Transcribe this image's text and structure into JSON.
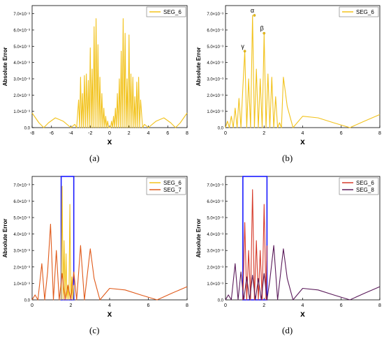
{
  "figure": {
    "panels": [
      {
        "label": "(a)"
      },
      {
        "label": "(b)"
      },
      {
        "label": "(c)"
      },
      {
        "label": "(d)"
      }
    ]
  },
  "chart_data": [
    {
      "type": "line",
      "xlabel": "x",
      "ylabel": "Absolute Error",
      "xlim": [
        -8,
        8
      ],
      "ylim": [
        0,
        0.0075
      ],
      "xticks": [
        -8,
        -6,
        -4,
        -2,
        0,
        2,
        4,
        6,
        8
      ],
      "yticks": [
        "0.0",
        "1.0×10⁻³",
        "2.0×10⁻³",
        "3.0×10⁻³",
        "4.0×10⁻³",
        "5.0×10⁻³",
        "6.0×10⁻³",
        "7.0×10⁻³"
      ],
      "legend": {
        "position": "top-right"
      },
      "grid": false,
      "series": [
        {
          "name": "SEG_6",
          "color": "#f2c21b",
          "x": [
            -8,
            -7.3,
            -6.8,
            -6.3,
            -5.6,
            -4.8,
            -4.0,
            -3.6,
            -3.4,
            -3.2,
            -3.1,
            -3.0,
            -2.9,
            -2.8,
            -2.7,
            -2.6,
            -2.5,
            -2.4,
            -2.3,
            -2.2,
            -2.1,
            -2.0,
            -1.9,
            -1.8,
            -1.7,
            -1.6,
            -1.5,
            -1.4,
            -1.3,
            -1.2,
            -1.1,
            -1.0,
            -0.9,
            -0.8,
            -0.7,
            -0.6,
            -0.5,
            -0.4,
            -0.3,
            -0.2,
            -0.1,
            0,
            0.1,
            0.2,
            0.3,
            0.4,
            0.5,
            0.6,
            0.7,
            0.8,
            0.9,
            1.0,
            1.1,
            1.2,
            1.3,
            1.4,
            1.5,
            1.6,
            1.7,
            1.8,
            1.9,
            2.0,
            2.1,
            2.2,
            2.3,
            2.4,
            2.5,
            2.6,
            2.7,
            2.8,
            2.9,
            3.0,
            3.1,
            3.2,
            3.4,
            3.6,
            4.0,
            4.8,
            5.6,
            6.3,
            6.8,
            7.3,
            8
          ],
          "y": [
            0.0009,
            0.0003,
            0.0,
            0.0003,
            0.0006,
            0.0004,
            0.0,
            0.0002,
            0.0,
            0.0017,
            0.0,
            0.0031,
            0.0,
            0.0021,
            0.0,
            0.0032,
            0.0,
            0.0033,
            0.0,
            0.0029,
            0.0,
            0.0049,
            0.0,
            0.0036,
            0.0,
            0.0062,
            0.0,
            0.0067,
            0.0,
            0.0051,
            0.0,
            0.0031,
            0.0,
            0.0021,
            0.0,
            0.0012,
            0.0,
            0.0007,
            0.0,
            0.0004,
            0.0,
            0.0,
            0.0,
            0.0004,
            0.0,
            0.0007,
            0.0,
            0.0012,
            0.0,
            0.0021,
            0.0,
            0.003,
            0.0,
            0.0047,
            0.0,
            0.0067,
            0.0,
            0.0058,
            0.0,
            0.003,
            0.0,
            0.0057,
            0.0,
            0.0033,
            0.0,
            0.0031,
            0.0,
            0.0019,
            0.0,
            0.0028,
            0.0,
            0.0031,
            0.0,
            0.0017,
            0.0,
            0.0002,
            0.0,
            0.0004,
            0.0006,
            0.0003,
            0.0,
            0.0003,
            0.0009
          ]
        }
      ]
    },
    {
      "type": "line",
      "xlabel": "x",
      "ylabel": "Absolute Error",
      "xlim": [
        0,
        8
      ],
      "ylim": [
        0,
        0.0075
      ],
      "xticks": [
        0,
        2,
        4,
        6,
        8
      ],
      "yticks": [
        "0.0",
        "1.0×10⁻³",
        "2.0×10⁻³",
        "3.0×10⁻³",
        "4.0×10⁻³",
        "5.0×10⁻³",
        "6.0×10⁻³",
        "7.0×10⁻³"
      ],
      "legend": {
        "position": "top-right"
      },
      "grid": false,
      "annotations": [
        {
          "text": "α",
          "x": 1.5,
          "y": 0.0069
        },
        {
          "text": "β",
          "x": 2.0,
          "y": 0.0058
        },
        {
          "text": "γ",
          "x": 1.0,
          "y": 0.0047
        }
      ],
      "series": [
        {
          "name": "SEG_6",
          "color": "#f2c21b",
          "x": [
            0,
            0.1,
            0.2,
            0.3,
            0.4,
            0.5,
            0.6,
            0.7,
            0.8,
            0.9,
            1.0,
            1.1,
            1.2,
            1.3,
            1.4,
            1.5,
            1.6,
            1.7,
            1.8,
            1.9,
            2.0,
            2.1,
            2.2,
            2.3,
            2.4,
            2.5,
            2.6,
            2.7,
            2.8,
            2.9,
            3.0,
            3.2,
            3.5,
            4.0,
            4.8,
            5.6,
            6.45,
            7.2,
            8
          ],
          "y": [
            0.0,
            0.0004,
            0.0,
            0.0007,
            0.0,
            0.0012,
            0.0,
            0.0018,
            0.0,
            0.0025,
            0.0047,
            0.0,
            0.003,
            0.0,
            0.0069,
            0.0,
            0.0036,
            0.0,
            0.003,
            0.0,
            0.0058,
            0.0,
            0.0033,
            0.0,
            0.0031,
            0.0,
            0.0019,
            0.0,
            0.0003,
            0.0,
            0.0031,
            0.0013,
            0.0,
            0.0007,
            0.0006,
            0.0003,
            0.0,
            0.0004,
            0.0008
          ]
        }
      ]
    },
    {
      "type": "line",
      "xlabel": "x",
      "ylabel": "Absolute Error",
      "xlim": [
        0,
        8
      ],
      "ylim": [
        0,
        0.0075
      ],
      "xticks": [
        0,
        2,
        4,
        6,
        8
      ],
      "yticks": [
        "0.0",
        "1.0×10⁻³",
        "2.0×10⁻³",
        "3.0×10⁻³",
        "4.0×10⁻³",
        "5.0×10⁻³",
        "6.0×10⁻³",
        "7.0×10⁻³"
      ],
      "legend": {
        "position": "top-right"
      },
      "grid": false,
      "highlight": {
        "x": [
          1.5,
          2.15
        ],
        "y": [
          0,
          0.0075
        ],
        "color": "#1a1aff"
      },
      "series": [
        {
          "name": "SEG_6",
          "color": "#f2c21b",
          "x": [
            1.5,
            1.55,
            1.6,
            1.65,
            1.7,
            1.75,
            1.8,
            1.85,
            1.9,
            1.95,
            2.0,
            2.05,
            2.1,
            2.15
          ],
          "y": [
            0.0,
            0.0069,
            0.0,
            0.0036,
            0.0,
            0.0028,
            0.0,
            0.0008,
            0.0,
            0.0058,
            0.0,
            0.0014,
            0.0,
            0.0009
          ]
        },
        {
          "name": "SEG_7",
          "color": "#e05a1a",
          "x": [
            0,
            0.15,
            0.3,
            0.5,
            0.65,
            0.8,
            0.95,
            1.1,
            1.25,
            1.4,
            1.55,
            1.7,
            1.85,
            2.0,
            2.15,
            2.3,
            2.5,
            2.7,
            3.0,
            3.2,
            3.5,
            4.0,
            4.8,
            5.6,
            6.45,
            7.2,
            8
          ],
          "y": [
            0.0,
            0.0003,
            0.0,
            0.0022,
            0.0,
            0.0017,
            0.0046,
            0.0,
            0.003,
            0.0,
            0.0016,
            0.0,
            0.0009,
            0.0,
            0.0017,
            0.0,
            0.0033,
            0.0,
            0.0031,
            0.0013,
            0.0,
            0.0007,
            0.0006,
            0.0003,
            0.0,
            0.0004,
            0.0008
          ]
        }
      ]
    },
    {
      "type": "line",
      "xlabel": "x",
      "ylabel": "Absolute Error",
      "xlim": [
        0,
        8
      ],
      "ylim": [
        0,
        0.0075
      ],
      "xticks": [
        0,
        2,
        4,
        6,
        8
      ],
      "yticks": [
        "0.0",
        "1.0×10⁻³",
        "2.0×10⁻³",
        "3.0×10⁻³",
        "4.0×10⁻³",
        "5.0×10⁻³",
        "6.0×10⁻³",
        "7.0×10⁻³"
      ],
      "legend": {
        "position": "top-right"
      },
      "grid": false,
      "highlight": {
        "x": [
          0.9,
          2.15
        ],
        "y": [
          0,
          0.0075
        ],
        "color": "#1a1aff"
      },
      "series": [
        {
          "name": "SEG_6",
          "color": "#d63a2a",
          "x": [
            0.9,
            1.0,
            1.1,
            1.2,
            1.3,
            1.4,
            1.5,
            1.6,
            1.7,
            1.8,
            1.9,
            2.0,
            2.1,
            2.15
          ],
          "y": [
            0.0,
            0.0047,
            0.0,
            0.003,
            0.0,
            0.0067,
            0.0,
            0.0036,
            0.0,
            0.003,
            0.0,
            0.0058,
            0.0,
            0.0033
          ]
        },
        {
          "name": "SEG_8",
          "color": "#5a1a5a",
          "x": [
            0,
            0.15,
            0.3,
            0.5,
            0.65,
            0.8,
            0.95,
            1.1,
            1.25,
            1.4,
            1.55,
            1.7,
            1.85,
            2.0,
            2.15,
            2.3,
            2.5,
            2.7,
            3.0,
            3.2,
            3.5,
            4.0,
            4.8,
            5.6,
            6.45,
            7.2,
            8
          ],
          "y": [
            0.0,
            0.0003,
            0.0,
            0.0022,
            0.0,
            0.0017,
            0.0,
            0.0014,
            0.0,
            0.0015,
            0.0,
            0.0013,
            0.0,
            0.0016,
            0.0,
            0.0012,
            0.0033,
            0.0,
            0.0031,
            0.0013,
            0.0,
            0.0007,
            0.0006,
            0.0003,
            0.0,
            0.0004,
            0.0008
          ]
        }
      ]
    }
  ]
}
